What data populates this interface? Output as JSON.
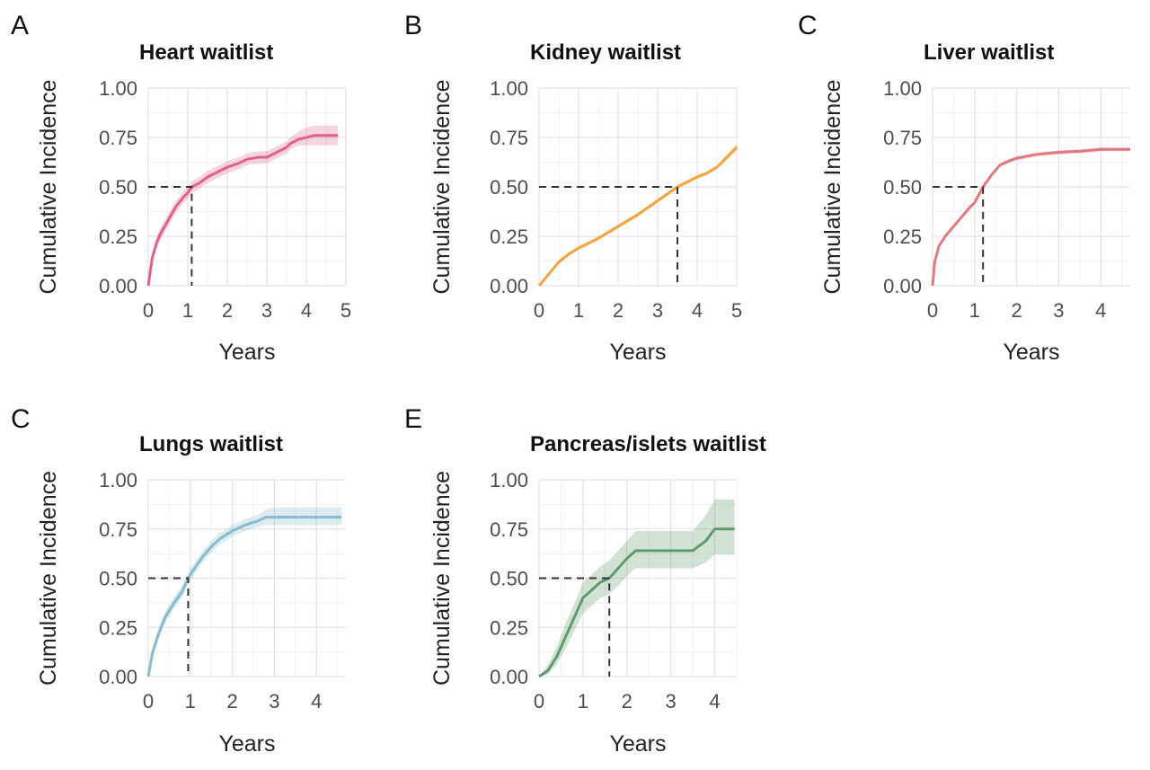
{
  "chart_data": [
    {
      "type": "line",
      "panel_letter": "A",
      "title": "Heart waitlist",
      "xlabel": "Years",
      "ylabel": "Cumulative Incidence",
      "xlim": [
        0,
        5
      ],
      "ylim": [
        0,
        1
      ],
      "xticks": [
        "0",
        "1",
        "2",
        "3",
        "4",
        "5"
      ],
      "yticks": [
        "0.00",
        "0.25",
        "0.50",
        "0.75",
        "1.00"
      ],
      "grid": true,
      "color": "#e0608f",
      "median": 1.1,
      "series": [
        {
          "x": [
            0,
            0.1,
            0.2,
            0.3,
            0.5,
            0.7,
            0.9,
            1.0,
            1.1,
            1.3,
            1.5,
            1.8,
            2.0,
            2.3,
            2.5,
            2.8,
            3.0,
            3.2,
            3.5,
            3.6,
            3.8,
            4.0,
            4.2,
            4.8
          ],
          "y": [
            0,
            0.14,
            0.21,
            0.26,
            0.33,
            0.4,
            0.45,
            0.47,
            0.5,
            0.52,
            0.55,
            0.58,
            0.6,
            0.62,
            0.64,
            0.65,
            0.65,
            0.67,
            0.7,
            0.72,
            0.74,
            0.75,
            0.76,
            0.76
          ],
          "lower": [
            0,
            0.12,
            0.18,
            0.23,
            0.3,
            0.37,
            0.42,
            0.44,
            0.47,
            0.49,
            0.52,
            0.55,
            0.57,
            0.59,
            0.61,
            0.62,
            0.62,
            0.64,
            0.67,
            0.69,
            0.71,
            0.71,
            0.71,
            0.71
          ],
          "upper": [
            0,
            0.16,
            0.24,
            0.29,
            0.36,
            0.43,
            0.48,
            0.5,
            0.53,
            0.55,
            0.58,
            0.61,
            0.63,
            0.65,
            0.67,
            0.68,
            0.68,
            0.7,
            0.73,
            0.75,
            0.78,
            0.8,
            0.81,
            0.81
          ]
        }
      ]
    },
    {
      "type": "line",
      "panel_letter": "B",
      "title": "Kidney waitlist",
      "xlabel": "Years",
      "ylabel": "Cumulative Incidence",
      "xlim": [
        0,
        5
      ],
      "ylim": [
        0,
        1
      ],
      "xticks": [
        "0",
        "1",
        "2",
        "3",
        "4",
        "5"
      ],
      "yticks": [
        "0.00",
        "0.25",
        "0.50",
        "0.75",
        "1.00"
      ],
      "grid": true,
      "color": "#f2a541",
      "median": 3.5,
      "series": [
        {
          "x": [
            0,
            0.25,
            0.5,
            0.75,
            1.0,
            1.5,
            2.0,
            2.5,
            3.0,
            3.5,
            4.0,
            4.25,
            4.5,
            4.75,
            5.0
          ],
          "y": [
            0,
            0.06,
            0.12,
            0.16,
            0.19,
            0.24,
            0.3,
            0.36,
            0.43,
            0.5,
            0.55,
            0.57,
            0.6,
            0.65,
            0.7
          ],
          "lower": [
            0,
            0.055,
            0.11,
            0.15,
            0.18,
            0.23,
            0.29,
            0.35,
            0.42,
            0.49,
            0.54,
            0.56,
            0.59,
            0.635,
            0.68
          ],
          "upper": [
            0,
            0.065,
            0.13,
            0.17,
            0.2,
            0.25,
            0.31,
            0.37,
            0.44,
            0.51,
            0.56,
            0.58,
            0.61,
            0.665,
            0.72
          ]
        }
      ]
    },
    {
      "type": "line",
      "panel_letter": "C",
      "title": "Liver waitlist",
      "xlabel": "Years",
      "ylabel": "Cumulative Incidence",
      "xlim": [
        0,
        4.7
      ],
      "ylim": [
        0,
        1
      ],
      "xticks": [
        "0",
        "1",
        "2",
        "3",
        "4"
      ],
      "yticks": [
        "0.00",
        "0.25",
        "0.50",
        "0.75",
        "1.00"
      ],
      "grid": true,
      "color": "#e07a80",
      "median": 1.2,
      "series": [
        {
          "x": [
            0,
            0.05,
            0.15,
            0.3,
            0.5,
            0.7,
            0.9,
            1.0,
            1.2,
            1.4,
            1.6,
            1.8,
            2.0,
            2.5,
            3.0,
            3.5,
            4.0,
            4.7
          ],
          "y": [
            0,
            0.12,
            0.2,
            0.25,
            0.3,
            0.35,
            0.4,
            0.42,
            0.5,
            0.56,
            0.61,
            0.63,
            0.645,
            0.665,
            0.675,
            0.68,
            0.69,
            0.69
          ],
          "lower": [
            0,
            0.11,
            0.19,
            0.24,
            0.29,
            0.34,
            0.39,
            0.41,
            0.49,
            0.55,
            0.6,
            0.62,
            0.635,
            0.655,
            0.665,
            0.67,
            0.68,
            0.68
          ],
          "upper": [
            0,
            0.13,
            0.21,
            0.26,
            0.31,
            0.36,
            0.41,
            0.43,
            0.51,
            0.57,
            0.62,
            0.64,
            0.655,
            0.675,
            0.685,
            0.69,
            0.7,
            0.7
          ]
        }
      ]
    },
    {
      "type": "line",
      "panel_letter": "C",
      "title": "Lungs waitlist",
      "xlabel": "Years",
      "ylabel": "Cumulative Incidence",
      "xlim": [
        0,
        4.7
      ],
      "ylim": [
        0,
        1
      ],
      "xticks": [
        "0",
        "1",
        "2",
        "3",
        "4"
      ],
      "yticks": [
        "0.00",
        "0.25",
        "0.50",
        "0.75",
        "1.00"
      ],
      "grid": true,
      "color": "#86bccb",
      "median": 0.95,
      "series": [
        {
          "x": [
            0,
            0.1,
            0.25,
            0.4,
            0.6,
            0.8,
            0.95,
            1.1,
            1.3,
            1.5,
            1.7,
            2.0,
            2.3,
            2.6,
            2.8,
            3.0,
            3.5,
            4.0,
            4.6
          ],
          "y": [
            0,
            0.12,
            0.22,
            0.3,
            0.37,
            0.43,
            0.5,
            0.55,
            0.61,
            0.66,
            0.7,
            0.74,
            0.77,
            0.79,
            0.81,
            0.81,
            0.81,
            0.81,
            0.81
          ],
          "lower": [
            0,
            0.1,
            0.19,
            0.27,
            0.34,
            0.4,
            0.47,
            0.52,
            0.58,
            0.63,
            0.67,
            0.71,
            0.74,
            0.76,
            0.77,
            0.77,
            0.77,
            0.77,
            0.77
          ],
          "upper": [
            0,
            0.14,
            0.25,
            0.33,
            0.4,
            0.46,
            0.53,
            0.58,
            0.64,
            0.69,
            0.73,
            0.77,
            0.8,
            0.82,
            0.85,
            0.86,
            0.86,
            0.86,
            0.86
          ]
        }
      ]
    },
    {
      "type": "line",
      "panel_letter": "E",
      "title": "Pancreas/islets waitlist",
      "xlabel": "Years",
      "ylabel": "Cumulative Incidence",
      "xlim": [
        0,
        4.5
      ],
      "ylim": [
        0,
        1
      ],
      "xticks": [
        "0",
        "1",
        "2",
        "3",
        "4"
      ],
      "yticks": [
        "0.00",
        "0.25",
        "0.50",
        "0.75",
        "1.00"
      ],
      "grid": true,
      "color": "#5e9a6c",
      "median": 1.6,
      "series": [
        {
          "x": [
            0,
            0.2,
            0.4,
            0.6,
            0.8,
            1.0,
            1.2,
            1.4,
            1.6,
            1.8,
            2.0,
            2.2,
            2.5,
            3.0,
            3.5,
            3.8,
            4.0,
            4.2,
            4.45
          ],
          "y": [
            0,
            0.03,
            0.1,
            0.2,
            0.3,
            0.4,
            0.44,
            0.48,
            0.5,
            0.55,
            0.6,
            0.64,
            0.64,
            0.64,
            0.64,
            0.69,
            0.75,
            0.75,
            0.75
          ],
          "lower": [
            0,
            0.01,
            0.06,
            0.14,
            0.23,
            0.32,
            0.36,
            0.4,
            0.42,
            0.46,
            0.51,
            0.55,
            0.55,
            0.55,
            0.55,
            0.58,
            0.62,
            0.62,
            0.62
          ],
          "upper": [
            0,
            0.06,
            0.15,
            0.27,
            0.37,
            0.48,
            0.52,
            0.56,
            0.59,
            0.64,
            0.69,
            0.74,
            0.74,
            0.74,
            0.74,
            0.82,
            0.9,
            0.9,
            0.9
          ]
        }
      ]
    }
  ]
}
